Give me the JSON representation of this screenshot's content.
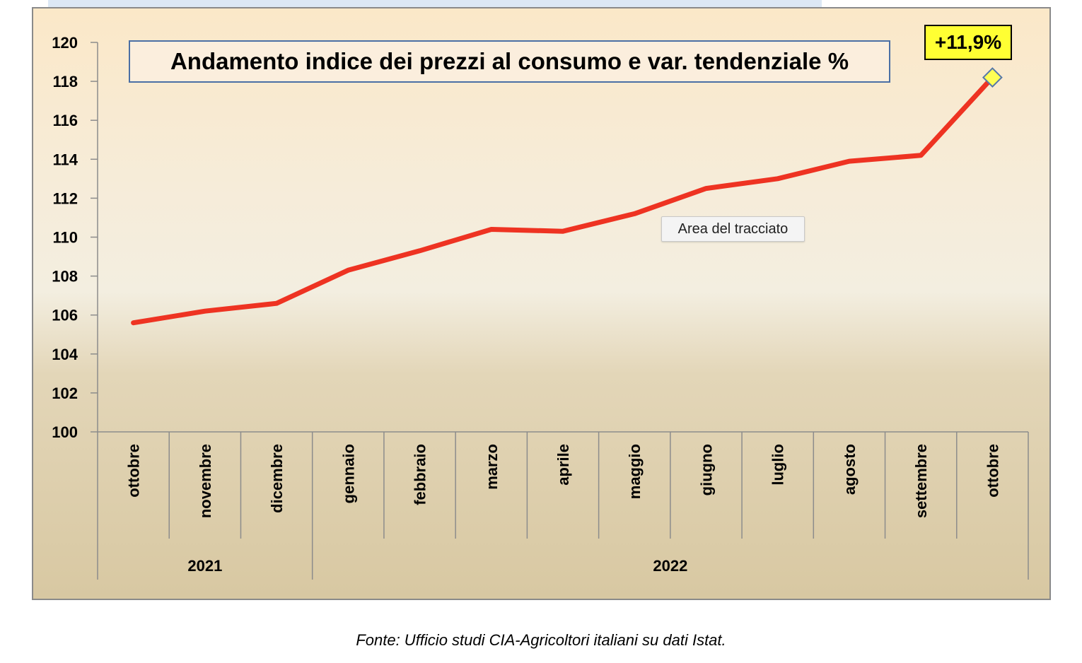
{
  "chart_data": {
    "type": "line",
    "title": "Andamento indice dei prezzi al consumo e var. tendenziale %",
    "categories": [
      "ottobre",
      "novembre",
      "dicembre",
      "gennaio",
      "febbraio",
      "marzo",
      "aprile",
      "maggio",
      "giugno",
      "luglio",
      "agosto",
      "settembre",
      "ottobre"
    ],
    "year_groups": [
      {
        "label": "2021",
        "span": 3
      },
      {
        "label": "2022",
        "span": 10
      }
    ],
    "series": [
      {
        "values": [
          105.6,
          106.2,
          106.6,
          108.3,
          109.3,
          110.4,
          110.3,
          111.2,
          112.5,
          113.0,
          113.9,
          114.2,
          118.2
        ],
        "color": "#ee3322"
      }
    ],
    "ylim": [
      100,
      120
    ],
    "yticks": [
      100,
      102,
      104,
      106,
      108,
      110,
      112,
      114,
      116,
      118,
      120
    ],
    "annotation": {
      "label": "+11,9%",
      "point_index": 12,
      "marker_color": "#ffff55"
    },
    "grid": false
  },
  "tooltip": "Area del tracciato",
  "source": "Fonte: Ufficio studi CIA-Agricoltori italiani su dati Istat."
}
